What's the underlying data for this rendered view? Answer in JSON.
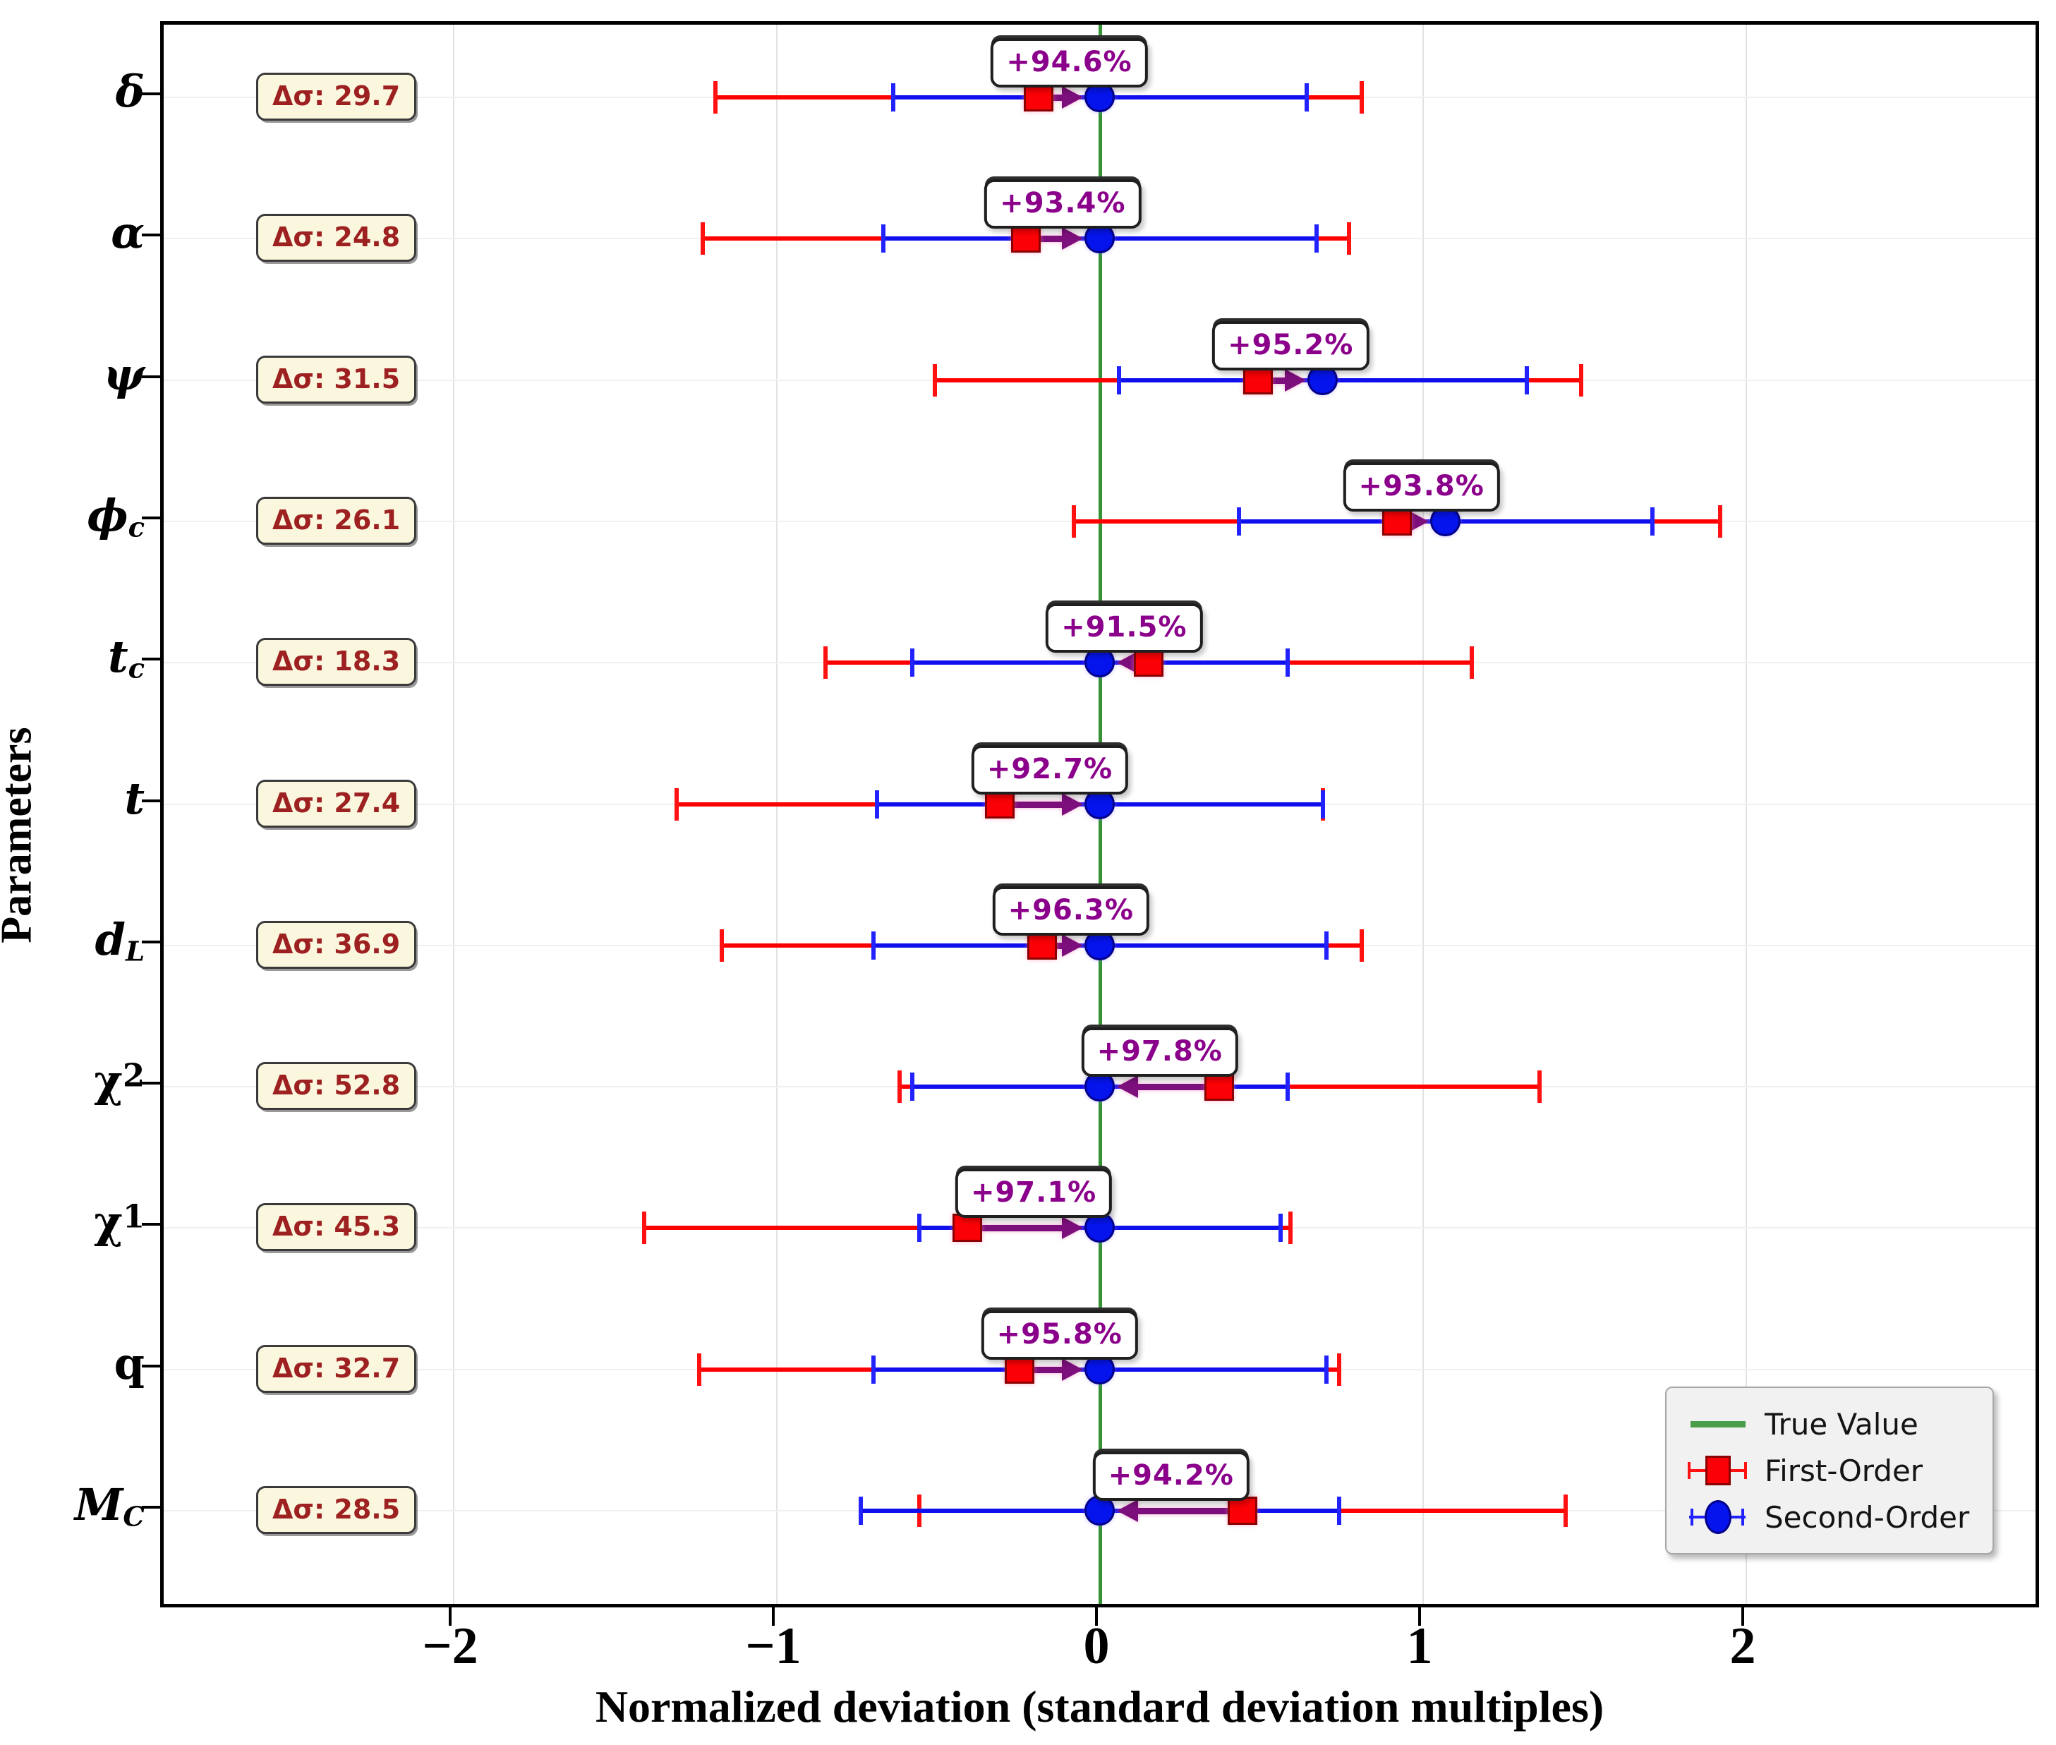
{
  "chart_data": {
    "type": "errorbar",
    "title": "",
    "xlabel": "Normalized deviation (standard deviation multiples)",
    "ylabel": "Parameters",
    "xlim": [
      -2.9,
      2.92
    ],
    "xticks": [
      {
        "value": -2,
        "label": "−2"
      },
      {
        "value": -1,
        "label": "−1"
      },
      {
        "value": 0,
        "label": "0"
      },
      {
        "value": 1,
        "label": "1"
      },
      {
        "value": 2,
        "label": "2"
      }
    ],
    "true_value": 0,
    "grid": true,
    "rows": [
      {
        "param": "δ",
        "sub": "",
        "subPos": "",
        "italic": true,
        "delta_sigma": "Δσ: 29.7",
        "improvement": "+94.6%",
        "first": {
          "x": -0.19,
          "err": 1.0
        },
        "second": {
          "x": 0.0,
          "err": 0.64
        }
      },
      {
        "param": "α",
        "sub": "",
        "subPos": "",
        "italic": true,
        "delta_sigma": "Δσ: 24.8",
        "improvement": "+93.4%",
        "first": {
          "x": -0.23,
          "err": 1.0
        },
        "second": {
          "x": 0.0,
          "err": 0.67
        }
      },
      {
        "param": "ψ",
        "sub": "",
        "subPos": "",
        "italic": true,
        "delta_sigma": "Δσ: 31.5",
        "improvement": "+95.2%",
        "first": {
          "x": 0.49,
          "err": 1.0
        },
        "second": {
          "x": 0.69,
          "err": 0.63
        }
      },
      {
        "param": "ϕ",
        "sub": "c",
        "subPos": "sub",
        "italic": true,
        "delta_sigma": "Δσ: 26.1",
        "improvement": "+93.8%",
        "first": {
          "x": 0.92,
          "err": 1.0
        },
        "second": {
          "x": 1.07,
          "err": 0.64
        }
      },
      {
        "param": "t",
        "sub": "c",
        "subPos": "sub",
        "italic": true,
        "delta_sigma": "Δσ: 18.3",
        "improvement": "+91.5%",
        "first": {
          "x": 0.15,
          "err": 1.0
        },
        "second": {
          "x": 0.0,
          "err": 0.58
        }
      },
      {
        "param": "t",
        "sub": "",
        "subPos": "",
        "italic": true,
        "delta_sigma": "Δσ: 27.4",
        "improvement": "+92.7%",
        "first": {
          "x": -0.31,
          "err": 1.0
        },
        "second": {
          "x": 0.0,
          "err": 0.69
        }
      },
      {
        "param": "d",
        "sub": "L",
        "subPos": "sub",
        "italic": true,
        "delta_sigma": "Δσ: 36.9",
        "improvement": "+96.3%",
        "first": {
          "x": -0.18,
          "err": 0.99
        },
        "second": {
          "x": 0.0,
          "err": 0.7
        }
      },
      {
        "param": "χ",
        "sub": "2",
        "subPos": "sup",
        "italic": false,
        "delta_sigma": "Δσ: 52.8",
        "improvement": "+97.8%",
        "first": {
          "x": 0.37,
          "err": 0.99
        },
        "second": {
          "x": 0.0,
          "err": 0.58
        }
      },
      {
        "param": "χ",
        "sub": "1",
        "subPos": "sup",
        "italic": false,
        "delta_sigma": "Δσ: 45.3",
        "improvement": "+97.1%",
        "first": {
          "x": -0.41,
          "err": 1.0
        },
        "second": {
          "x": 0.0,
          "err": 0.56
        }
      },
      {
        "param": "q",
        "sub": "",
        "subPos": "",
        "italic": false,
        "delta_sigma": "Δσ: 32.7",
        "improvement": "+95.8%",
        "first": {
          "x": -0.25,
          "err": 0.99
        },
        "second": {
          "x": 0.0,
          "err": 0.7
        }
      },
      {
        "param": "M",
        "sub": "C",
        "subPos": "sub",
        "italic": true,
        "delta_sigma": "Δσ: 28.5",
        "improvement": "+94.2%",
        "first": {
          "x": 0.44,
          "err": 1.0
        },
        "second": {
          "x": 0.0,
          "err": 0.74
        }
      }
    ],
    "legend": {
      "position": "lower right",
      "entries": [
        {
          "label": "True Value",
          "marker": "green-line"
        },
        {
          "label": "First-Order",
          "marker": "red-square"
        },
        {
          "label": "Second-Order",
          "marker": "blue-circle"
        }
      ]
    },
    "colors": {
      "first_order": "#fb0006",
      "first_order_edge": "#8b0000",
      "second_order": "#0514ec",
      "second_order_edge": "#00008b",
      "true_value": "#359335",
      "arrow": "#7c0f7c",
      "improvement_text": "#8b008b",
      "delta_sigma_text": "#9e2121",
      "delta_sigma_bg": "#fbf7df"
    }
  },
  "legend_labels": {
    "true_value": "True Value",
    "first_order": "First-Order",
    "second_order": "Second-Order"
  },
  "axis": {
    "xlabel": "Normalized deviation (standard deviation multiples)",
    "ylabel": "Parameters"
  }
}
